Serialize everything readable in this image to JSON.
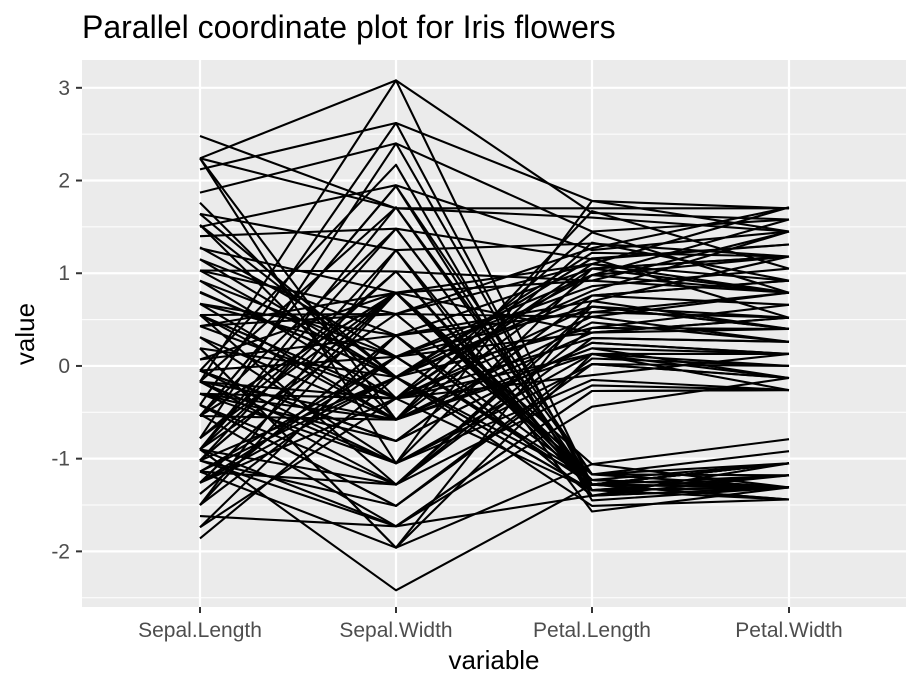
{
  "chart_data": {
    "type": "line",
    "title": "Parallel coordinate plot for Iris flowers",
    "xlabel": "variable",
    "ylabel": "value",
    "categories": [
      "Sepal.Length",
      "Sepal.Width",
      "Petal.Length",
      "Petal.Width"
    ],
    "y_ticks": [
      "3",
      "2",
      "1",
      "0",
      "-1",
      "-2"
    ],
    "y_tick_values": [
      3,
      2,
      1,
      0,
      -1,
      -2
    ],
    "ylim": [
      -2.6,
      3.3
    ],
    "grid": true,
    "panel_background": "#ebebeb",
    "line_color": "#000000",
    "series": [
      {
        "values": [
          2.48,
          1.7,
          1.7,
          1.7
        ]
      },
      {
        "values": [
          2.24,
          3.08,
          1.65,
          1.58
        ]
      },
      {
        "values": [
          2.24,
          1.7,
          1.6,
          1.45
        ]
      },
      {
        "values": [
          2.12,
          2.62,
          1.78,
          1.7
        ]
      },
      {
        "values": [
          1.87,
          2.4,
          1.45,
          1.58
        ]
      },
      {
        "values": [
          1.64,
          1.25,
          1.32,
          1.18
        ]
      },
      {
        "values": [
          1.5,
          1.95,
          1.25,
          1.45
        ]
      },
      {
        "values": [
          1.4,
          1.48,
          1.15,
          1.31
        ]
      },
      {
        "values": [
          1.27,
          0.79,
          1.1,
          0.92
        ]
      },
      {
        "values": [
          1.15,
          0.33,
          1.05,
          1.18
        ]
      },
      {
        "values": [
          1.03,
          1.02,
          0.92,
          0.79
        ]
      },
      {
        "values": [
          0.92,
          0.1,
          0.86,
          1.05
        ]
      },
      {
        "values": [
          0.8,
          -0.12,
          0.76,
          0.66
        ]
      },
      {
        "values": [
          0.67,
          0.33,
          0.7,
          1.18
        ]
      },
      {
        "values": [
          0.55,
          -0.35,
          0.64,
          0.52
        ]
      },
      {
        "values": [
          0.43,
          0.56,
          0.53,
          0.79
        ]
      },
      {
        "values": [
          0.31,
          -0.58,
          0.47,
          0.26
        ]
      },
      {
        "values": [
          0.19,
          -0.12,
          0.41,
          0.4
        ]
      },
      {
        "values": [
          0.07,
          0.79,
          0.36,
          0.52
        ]
      },
      {
        "values": [
          -0.05,
          -0.81,
          0.25,
          0.13
        ]
      },
      {
        "values": [
          -0.17,
          -0.35,
          0.13,
          -0.13
        ]
      },
      {
        "values": [
          -0.3,
          -1.05,
          0.02,
          0.0
        ]
      },
      {
        "values": [
          -0.42,
          -1.28,
          -0.21,
          -0.26
        ]
      },
      {
        "values": [
          -0.52,
          -1.73,
          -0.44,
          -0.13
        ]
      },
      {
        "values": [
          -0.9,
          -1.28,
          0.3,
          0.26
        ]
      },
      {
        "values": [
          1.03,
          -0.12,
          0.81,
          1.45
        ]
      },
      {
        "values": [
          0.55,
          -0.58,
          0.98,
          1.58
        ]
      },
      {
        "values": [
          0.31,
          -1.05,
          1.05,
          1.18
        ]
      },
      {
        "values": [
          -0.05,
          -0.81,
          0.76,
          0.92
        ]
      },
      {
        "values": [
          -0.17,
          -1.28,
          0.58,
          0.52
        ]
      },
      {
        "values": [
          -0.54,
          -0.58,
          0.19,
          -0.13
        ]
      },
      {
        "values": [
          -0.9,
          -1.73,
          -0.27,
          -0.26
        ]
      },
      {
        "values": [
          -1.02,
          -1.51,
          0.08,
          0.0
        ]
      },
      {
        "values": [
          -1.14,
          -1.28,
          0.41,
          0.66
        ]
      },
      {
        "values": [
          -1.26,
          -0.35,
          0.3,
          0.26
        ]
      },
      {
        "values": [
          0.92,
          -0.35,
          1.1,
          0.79
        ]
      },
      {
        "values": [
          -0.05,
          0.1,
          0.36,
          0.4
        ]
      },
      {
        "values": [
          0.43,
          -0.35,
          0.53,
          0.26
        ]
      },
      {
        "values": [
          -0.3,
          -0.58,
          0.13,
          0.13
        ]
      },
      {
        "values": [
          0.67,
          -0.58,
          0.36,
          0.52
        ]
      },
      {
        "values": [
          -1.02,
          0.79,
          -1.23,
          -1.31
        ]
      },
      {
        "values": [
          -1.14,
          -0.12,
          -1.34,
          -1.31
        ]
      },
      {
        "values": [
          -1.38,
          0.33,
          -1.4,
          -1.31
        ]
      },
      {
        "values": [
          -1.5,
          0.1,
          -1.28,
          -1.31
        ]
      },
      {
        "values": [
          -1.02,
          1.25,
          -1.34,
          -1.31
        ]
      },
      {
        "values": [
          -0.54,
          1.94,
          -1.17,
          -1.05
        ]
      },
      {
        "values": [
          -1.5,
          0.79,
          -1.34,
          -1.18
        ]
      },
      {
        "values": [
          -1.02,
          0.79,
          -1.28,
          -1.31
        ]
      },
      {
        "values": [
          -1.74,
          -0.35,
          -1.34,
          -1.31
        ]
      },
      {
        "values": [
          -1.14,
          0.1,
          -1.28,
          -1.44
        ]
      },
      {
        "values": [
          -0.54,
          1.48,
          -1.28,
          -1.31
        ]
      },
      {
        "values": [
          -1.26,
          0.79,
          -1.23,
          -1.31
        ]
      },
      {
        "values": [
          -1.26,
          -0.12,
          -1.34,
          -1.44
        ]
      },
      {
        "values": [
          -1.86,
          -0.12,
          -1.51,
          -1.44
        ]
      },
      {
        "values": [
          -0.05,
          2.17,
          -1.45,
          -1.31
        ]
      },
      {
        "values": [
          -0.17,
          3.08,
          -1.28,
          -1.05
        ]
      },
      {
        "values": [
          -0.54,
          1.94,
          -1.4,
          -1.05
        ]
      },
      {
        "values": [
          -0.9,
          1.02,
          -1.34,
          -1.18
        ]
      },
      {
        "values": [
          -0.17,
          1.71,
          -1.17,
          -1.18
        ]
      },
      {
        "values": [
          -0.9,
          1.71,
          -1.28,
          -1.18
        ]
      },
      {
        "values": [
          -0.54,
          0.79,
          -1.17,
          -1.31
        ]
      },
      {
        "values": [
          -0.9,
          1.48,
          -1.28,
          -1.05
        ]
      },
      {
        "values": [
          -1.5,
          1.25,
          -1.57,
          -1.31
        ]
      },
      {
        "values": [
          -0.9,
          0.56,
          -1.17,
          -0.92
        ]
      },
      {
        "values": [
          -1.26,
          0.79,
          -1.06,
          -1.31
        ]
      },
      {
        "values": [
          -1.02,
          -0.12,
          -1.23,
          -1.31
        ]
      },
      {
        "values": [
          -1.02,
          0.79,
          -1.23,
          -1.05
        ]
      },
      {
        "values": [
          -0.78,
          1.02,
          -1.28,
          -1.31
        ]
      },
      {
        "values": [
          -0.78,
          0.79,
          -1.34,
          -1.31
        ]
      },
      {
        "values": [
          -1.38,
          0.33,
          -1.23,
          -1.31
        ]
      },
      {
        "values": [
          -1.26,
          0.1,
          -1.23,
          -1.31
        ]
      },
      {
        "values": [
          -0.54,
          0.79,
          -1.28,
          -1.05
        ]
      },
      {
        "values": [
          -0.78,
          2.4,
          -1.28,
          -1.44
        ]
      },
      {
        "values": [
          -0.42,
          2.62,
          -1.34,
          -1.31
        ]
      },
      {
        "values": [
          -1.62,
          -1.73,
          -1.4,
          -1.18
        ]
      },
      {
        "values": [
          -0.9,
          -2.42,
          -1.28,
          -1.05
        ]
      },
      {
        "values": [
          -1.14,
          -1.96,
          -1.06,
          -0.79
        ]
      },
      {
        "values": [
          -0.3,
          -0.81,
          0.25,
          0.13
        ]
      },
      {
        "values": [
          0.19,
          -1.96,
          0.13,
          -0.26
        ]
      },
      {
        "values": [
          -0.42,
          -1.51,
          0.02,
          -0.13
        ]
      },
      {
        "values": [
          -1.74,
          0.33,
          -1.4,
          -1.31
        ]
      },
      {
        "values": [
          -0.17,
          -0.58,
          0.19,
          0.13
        ]
      },
      {
        "values": [
          0.55,
          -1.28,
          0.64,
          0.4
        ]
      },
      {
        "values": [
          1.28,
          0.1,
          0.64,
          0.4
        ]
      },
      {
        "values": [
          2.24,
          -0.58,
          1.67,
          1.05
        ]
      },
      {
        "values": [
          2.24,
          -1.05,
          1.78,
          1.45
        ]
      },
      {
        "values": [
          1.64,
          -0.12,
          1.16,
          0.52
        ]
      },
      {
        "values": [
          0.79,
          -0.12,
          1.16,
          1.31
        ]
      },
      {
        "values": [
          -0.05,
          -0.81,
          0.76,
          0.92
        ]
      },
      {
        "values": [
          1.15,
          -0.12,
          0.98,
          1.18
        ]
      },
      {
        "values": [
          0.43,
          0.79,
          0.92,
          1.45
        ]
      },
      {
        "values": [
          0.67,
          0.1,
          0.98,
          0.79
        ]
      },
      {
        "values": [
          -1.02,
          -1.73,
          -0.27,
          -0.26
        ]
      },
      {
        "values": [
          -0.42,
          -1.51,
          0.02,
          -0.13
        ]
      },
      {
        "values": [
          -0.17,
          -1.05,
          -0.15,
          -0.26
        ]
      },
      {
        "values": [
          1.03,
          0.56,
          1.1,
          1.71
        ]
      },
      {
        "values": [
          0.55,
          0.56,
          1.27,
          1.71
        ]
      },
      {
        "values": [
          0.07,
          0.33,
          0.58,
          0.79
        ]
      },
      {
        "values": [
          1.76,
          -0.35,
          1.44,
          0.79
        ]
      },
      {
        "values": [
          1.52,
          -0.12,
          1.22,
          1.18
        ]
      },
      {
        "values": [
          1.52,
          -0.58,
          1.33,
          0.92
        ]
      },
      {
        "values": [
          -0.3,
          -0.35,
          -0.1,
          0.13
        ]
      },
      {
        "values": [
          -0.05,
          -1.05,
          0.13,
          0.0
        ]
      },
      {
        "values": [
          0.19,
          -1.96,
          0.7,
          0.4
        ]
      },
      {
        "values": [
          0.55,
          -0.35,
          1.05,
          0.79
        ]
      }
    ]
  }
}
